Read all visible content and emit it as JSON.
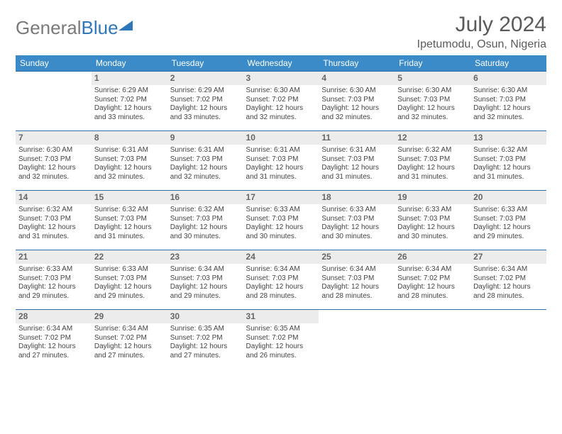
{
  "logo": {
    "word1": "General",
    "word2": "Blue"
  },
  "title": "July 2024",
  "subtitle": "Ipetumodu, Osun, Nigeria",
  "colors": {
    "header_bg": "#3b8bc8",
    "row_border": "#2f6ea8",
    "daynum_bg": "#ececec",
    "text": "#444444",
    "logo_gray": "#7a7a7a",
    "logo_blue": "#2f77bb"
  },
  "weekdays": [
    "Sunday",
    "Monday",
    "Tuesday",
    "Wednesday",
    "Thursday",
    "Friday",
    "Saturday"
  ],
  "labels": {
    "sunrise": "Sunrise:",
    "sunset": "Sunset:",
    "daylight": "Daylight:"
  },
  "weeks": [
    [
      null,
      {
        "n": "1",
        "sunrise": "6:29 AM",
        "sunset": "7:02 PM",
        "daylight": "12 hours and 33 minutes."
      },
      {
        "n": "2",
        "sunrise": "6:29 AM",
        "sunset": "7:02 PM",
        "daylight": "12 hours and 33 minutes."
      },
      {
        "n": "3",
        "sunrise": "6:30 AM",
        "sunset": "7:02 PM",
        "daylight": "12 hours and 32 minutes."
      },
      {
        "n": "4",
        "sunrise": "6:30 AM",
        "sunset": "7:03 PM",
        "daylight": "12 hours and 32 minutes."
      },
      {
        "n": "5",
        "sunrise": "6:30 AM",
        "sunset": "7:03 PM",
        "daylight": "12 hours and 32 minutes."
      },
      {
        "n": "6",
        "sunrise": "6:30 AM",
        "sunset": "7:03 PM",
        "daylight": "12 hours and 32 minutes."
      }
    ],
    [
      {
        "n": "7",
        "sunrise": "6:30 AM",
        "sunset": "7:03 PM",
        "daylight": "12 hours and 32 minutes."
      },
      {
        "n": "8",
        "sunrise": "6:31 AM",
        "sunset": "7:03 PM",
        "daylight": "12 hours and 32 minutes."
      },
      {
        "n": "9",
        "sunrise": "6:31 AM",
        "sunset": "7:03 PM",
        "daylight": "12 hours and 32 minutes."
      },
      {
        "n": "10",
        "sunrise": "6:31 AM",
        "sunset": "7:03 PM",
        "daylight": "12 hours and 31 minutes."
      },
      {
        "n": "11",
        "sunrise": "6:31 AM",
        "sunset": "7:03 PM",
        "daylight": "12 hours and 31 minutes."
      },
      {
        "n": "12",
        "sunrise": "6:32 AM",
        "sunset": "7:03 PM",
        "daylight": "12 hours and 31 minutes."
      },
      {
        "n": "13",
        "sunrise": "6:32 AM",
        "sunset": "7:03 PM",
        "daylight": "12 hours and 31 minutes."
      }
    ],
    [
      {
        "n": "14",
        "sunrise": "6:32 AM",
        "sunset": "7:03 PM",
        "daylight": "12 hours and 31 minutes."
      },
      {
        "n": "15",
        "sunrise": "6:32 AM",
        "sunset": "7:03 PM",
        "daylight": "12 hours and 31 minutes."
      },
      {
        "n": "16",
        "sunrise": "6:32 AM",
        "sunset": "7:03 PM",
        "daylight": "12 hours and 30 minutes."
      },
      {
        "n": "17",
        "sunrise": "6:33 AM",
        "sunset": "7:03 PM",
        "daylight": "12 hours and 30 minutes."
      },
      {
        "n": "18",
        "sunrise": "6:33 AM",
        "sunset": "7:03 PM",
        "daylight": "12 hours and 30 minutes."
      },
      {
        "n": "19",
        "sunrise": "6:33 AM",
        "sunset": "7:03 PM",
        "daylight": "12 hours and 30 minutes."
      },
      {
        "n": "20",
        "sunrise": "6:33 AM",
        "sunset": "7:03 PM",
        "daylight": "12 hours and 29 minutes."
      }
    ],
    [
      {
        "n": "21",
        "sunrise": "6:33 AM",
        "sunset": "7:03 PM",
        "daylight": "12 hours and 29 minutes."
      },
      {
        "n": "22",
        "sunrise": "6:33 AM",
        "sunset": "7:03 PM",
        "daylight": "12 hours and 29 minutes."
      },
      {
        "n": "23",
        "sunrise": "6:34 AM",
        "sunset": "7:03 PM",
        "daylight": "12 hours and 29 minutes."
      },
      {
        "n": "24",
        "sunrise": "6:34 AM",
        "sunset": "7:03 PM",
        "daylight": "12 hours and 28 minutes."
      },
      {
        "n": "25",
        "sunrise": "6:34 AM",
        "sunset": "7:03 PM",
        "daylight": "12 hours and 28 minutes."
      },
      {
        "n": "26",
        "sunrise": "6:34 AM",
        "sunset": "7:02 PM",
        "daylight": "12 hours and 28 minutes."
      },
      {
        "n": "27",
        "sunrise": "6:34 AM",
        "sunset": "7:02 PM",
        "daylight": "12 hours and 28 minutes."
      }
    ],
    [
      {
        "n": "28",
        "sunrise": "6:34 AM",
        "sunset": "7:02 PM",
        "daylight": "12 hours and 27 minutes."
      },
      {
        "n": "29",
        "sunrise": "6:34 AM",
        "sunset": "7:02 PM",
        "daylight": "12 hours and 27 minutes."
      },
      {
        "n": "30",
        "sunrise": "6:35 AM",
        "sunset": "7:02 PM",
        "daylight": "12 hours and 27 minutes."
      },
      {
        "n": "31",
        "sunrise": "6:35 AM",
        "sunset": "7:02 PM",
        "daylight": "12 hours and 26 minutes."
      },
      null,
      null,
      null
    ]
  ]
}
